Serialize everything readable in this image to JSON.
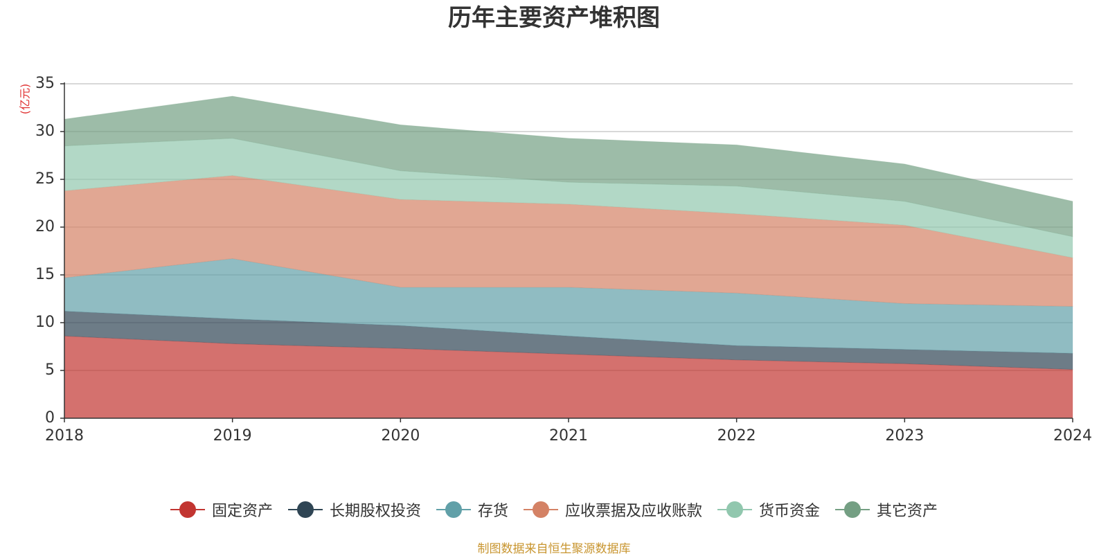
{
  "title": "历年主要资产堆积图",
  "source_note": "制图数据来自恒生聚源数据库",
  "chart_data": {
    "type": "area",
    "stacked": true,
    "title": "历年主要资产堆积图",
    "ylabel": "(亿元)",
    "xlabel": "",
    "x": [
      "2018",
      "2019",
      "2020",
      "2021",
      "2022",
      "2023",
      "2024"
    ],
    "ylim": [
      0,
      35
    ],
    "yticks": [
      0,
      5,
      10,
      15,
      20,
      25,
      30,
      35
    ],
    "grid": true,
    "legend_position": "bottom",
    "series": [
      {
        "name": "固定资产",
        "color": "#c23531",
        "values": [
          8.6,
          7.8,
          7.3,
          6.7,
          6.1,
          5.7,
          5.1
        ]
      },
      {
        "name": "长期股权投资",
        "color": "#2f4554",
        "values": [
          2.6,
          2.6,
          2.4,
          1.9,
          1.5,
          1.5,
          1.7
        ]
      },
      {
        "name": "存货",
        "color": "#61a0a8",
        "values": [
          3.5,
          6.3,
          4.0,
          5.1,
          5.5,
          4.8,
          4.9
        ]
      },
      {
        "name": "应收票据及应收账款",
        "color": "#d48265",
        "values": [
          9.1,
          8.7,
          9.2,
          8.7,
          8.3,
          8.2,
          5.1
        ]
      },
      {
        "name": "货币资金",
        "color": "#91c7ae",
        "values": [
          4.7,
          3.9,
          3.0,
          2.3,
          2.9,
          2.5,
          2.2
        ]
      },
      {
        "name": "其它资产",
        "color": "#749f83",
        "values": [
          2.8,
          4.4,
          4.8,
          4.6,
          4.3,
          3.9,
          3.7
        ]
      }
    ]
  }
}
